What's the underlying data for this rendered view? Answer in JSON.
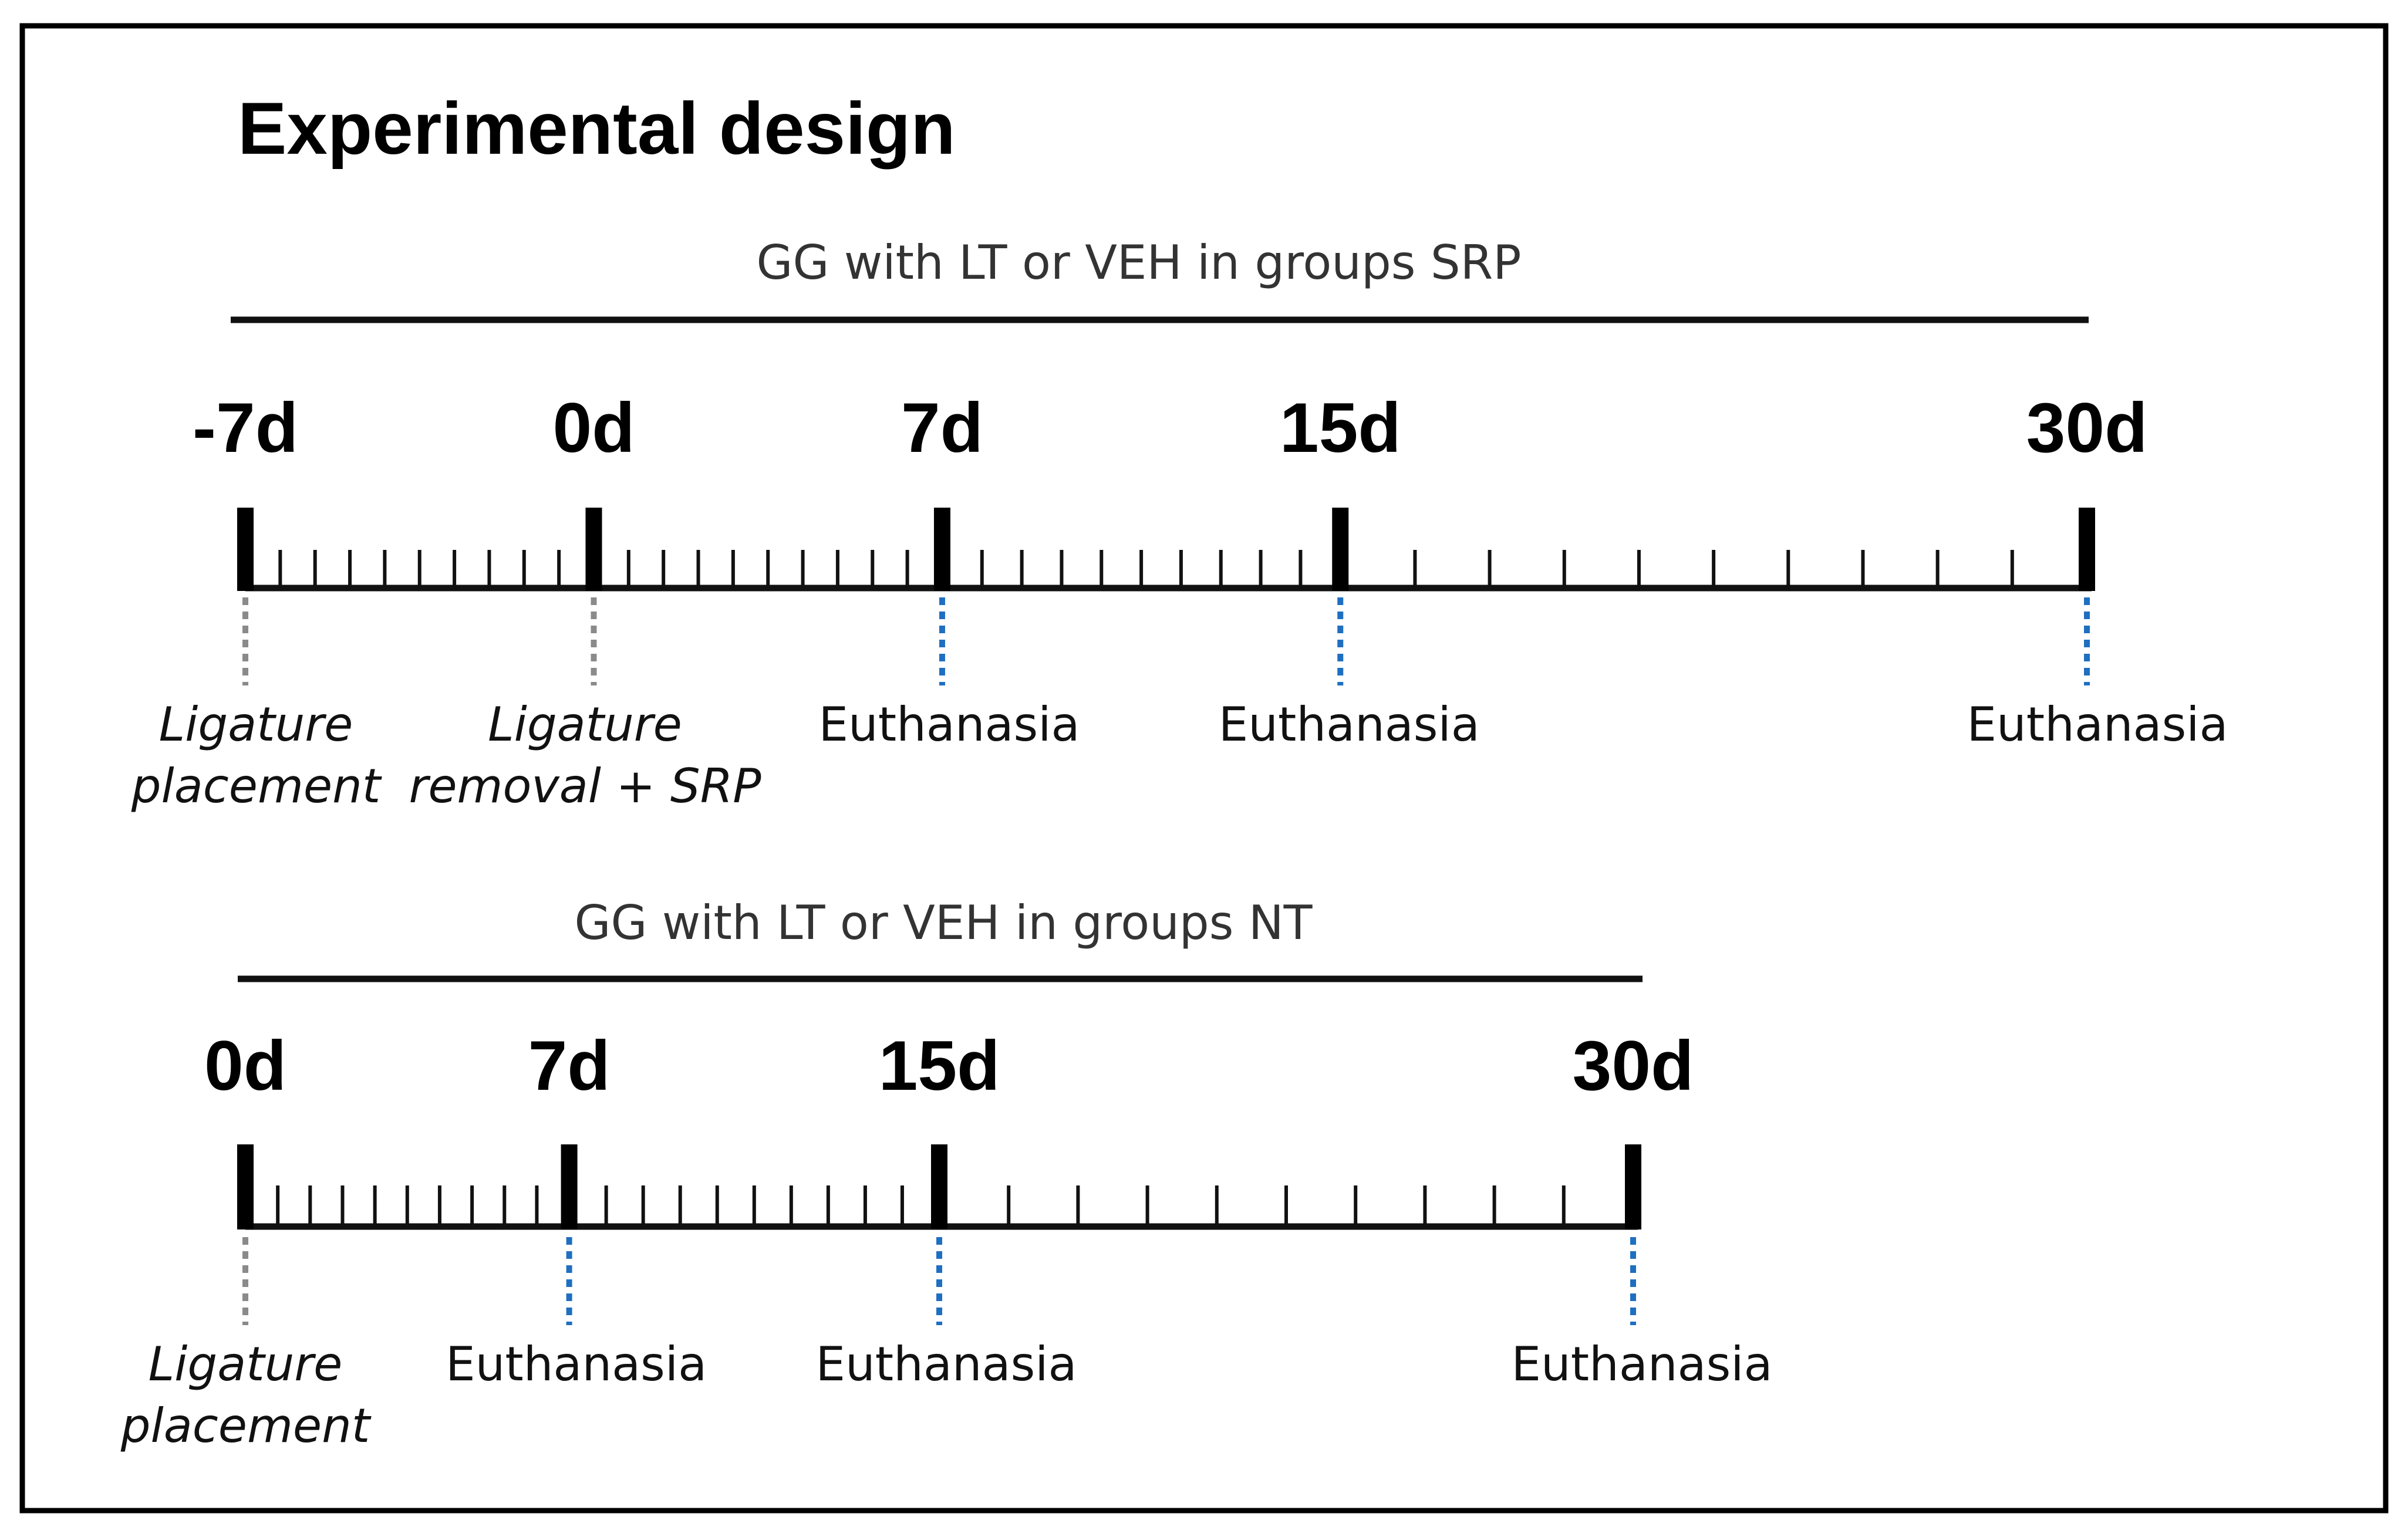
{
  "title": "Experimental design",
  "colors": {
    "frame": "#000000",
    "axis": "#111111",
    "marker_gray": "#8a8a8a",
    "marker_blue": "#1f6fc1"
  },
  "timelines": [
    {
      "id": "srp",
      "group_label": "GG with LT or VEH in groups SRP",
      "days": [
        {
          "label": "-7d",
          "value": -7,
          "marker": "gray",
          "event": [
            "Ligature",
            "placement"
          ],
          "italic": true
        },
        {
          "label": "0d",
          "value": 0,
          "marker": "gray",
          "event": [
            "Ligature",
            "removal + SRP"
          ],
          "italic": true
        },
        {
          "label": "7d",
          "value": 7,
          "marker": "blue",
          "event": [
            "Euthanasia"
          ],
          "italic": false
        },
        {
          "label": "15d",
          "value": 15,
          "marker": "blue",
          "event": [
            "Euthanasia"
          ],
          "italic": false
        },
        {
          "label": "30d",
          "value": 30,
          "marker": "blue",
          "event": [
            "Euthanasia"
          ],
          "italic": false
        }
      ]
    },
    {
      "id": "nt",
      "group_label": "GG with LT or VEH in groups NT",
      "days": [
        {
          "label": "0d",
          "value": 0,
          "marker": "gray",
          "event": [
            "Ligature",
            "placement"
          ],
          "italic": true
        },
        {
          "label": "7d",
          "value": 7,
          "marker": "blue",
          "event": [
            "Euthanasia"
          ],
          "italic": false
        },
        {
          "label": "15d",
          "value": 15,
          "marker": "blue",
          "event": [
            "Euthanasia"
          ],
          "italic": false
        },
        {
          "label": "30d",
          "value": 30,
          "marker": "blue",
          "event": [
            "Euthanasia"
          ],
          "italic": false
        }
      ]
    }
  ]
}
